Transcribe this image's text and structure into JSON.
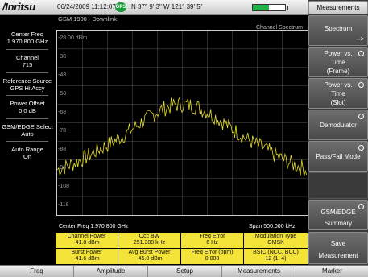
{
  "status": {
    "logo": "/Inritsu",
    "datetime": "06/24/2009 11:12:07 am",
    "gps_badge": "GPS",
    "coords": "N 37° 9' 3\" W 121° 39' 5\"",
    "battery_level": 0.5
  },
  "subtitle": "GSM 1900 - Downlink",
  "mode_label": "Channel Spectrum",
  "left_info": [
    {
      "label": "Center Freq",
      "value": "1.970 800 GHz"
    },
    {
      "label": "Channel",
      "value": "715"
    },
    {
      "label": "Reference Source",
      "value": "GPS Hi Accy"
    },
    {
      "label": "Power Offset",
      "value": "0.0 dB"
    },
    {
      "label": "GSM/EDGE Select",
      "value": "Auto"
    },
    {
      "label": "Auto Range",
      "value": "On"
    }
  ],
  "graph": {
    "y_ticks": [
      "-28.00 dBm",
      "-38",
      "-48",
      "-58",
      "-68",
      "-78",
      "-88",
      "-98",
      "-108",
      "-118"
    ],
    "center_freq": "Center Freq 1.970 800 GHz",
    "span": "Span 500.000 kHz"
  },
  "measurements": [
    {
      "label": "Channel Power",
      "value": "-41.8 dBm"
    },
    {
      "label": "Occ BW",
      "value": "251.388 kHz"
    },
    {
      "label": "Freq Error",
      "value": "6 Hz"
    },
    {
      "label": "Modulation Type",
      "value": "GMSK"
    },
    {
      "label": "Burst Power",
      "value": "-41.6 dBm"
    },
    {
      "label": "Avg Burst Power",
      "value": "-45.0 dBm"
    },
    {
      "label": "Freq Error (ppm)",
      "value": "0.003"
    },
    {
      "label": "BSIC (NCC, BCC)",
      "value": "12 (1, 4)"
    }
  ],
  "right_menu": {
    "title": "Measurements",
    "items": [
      {
        "lines": [
          "Spectrum",
          "-->"
        ]
      },
      {
        "lines": [
          "Power vs.",
          "Time",
          "(Frame)"
        ]
      },
      {
        "lines": [
          "Power vs.",
          "Time",
          "(Slot)"
        ]
      },
      {
        "lines": [
          "Demodulator"
        ]
      },
      {
        "lines": [
          "Pass/Fail Mode"
        ]
      },
      {
        "lines": [
          "GSM/EDGE",
          "Summary"
        ]
      },
      {
        "lines": [
          "Save",
          "Measurement"
        ]
      }
    ]
  },
  "bottom_menu": [
    "Freq",
    "Amplitude",
    "Setup",
    "Measurements",
    "Marker"
  ],
  "colors": {
    "trace": "#e8df2a",
    "measure_cell": "#f4e43a",
    "gps": "#1a9d3a",
    "battery": "#21b24a"
  }
}
